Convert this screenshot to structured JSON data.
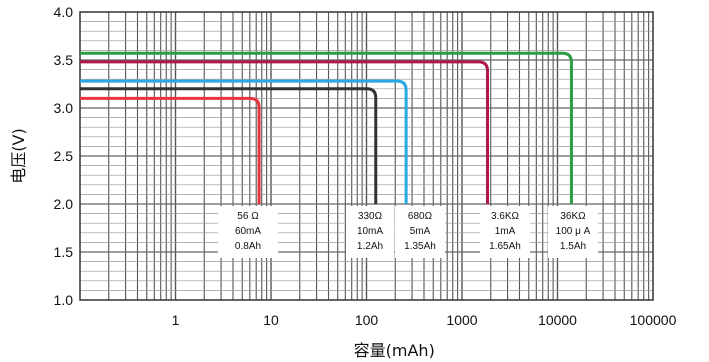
{
  "chart_data": {
    "type": "line",
    "title": "",
    "xlabel": "容量(mAh)",
    "ylabel": "电压(V)",
    "x_scale": "log",
    "xlim": [
      0.1,
      100000
    ],
    "ylim": [
      1.0,
      4.0
    ],
    "grid": true,
    "legend": "none",
    "x_ticks": [
      "1",
      "10",
      "100",
      "1000",
      "10000",
      "100000"
    ],
    "y_ticks": [
      "1.0",
      "1.5",
      "2.0",
      "2.5",
      "3.0",
      "3.5",
      "4.0"
    ],
    "series": [
      {
        "color": "#e8343c",
        "x": [
          0.1,
          7.5,
          7.5
        ],
        "y": [
          3.1,
          3.1,
          2.0
        ]
      },
      {
        "color": "#333333",
        "x": [
          0.1,
          125,
          125
        ],
        "y": [
          3.2,
          3.2,
          2.0
        ]
      },
      {
        "color": "#2aa8e0",
        "x": [
          0.1,
          260,
          260
        ],
        "y": [
          3.28,
          3.28,
          2.0
        ]
      },
      {
        "color": "#b0174a",
        "x": [
          0.1,
          1850,
          1850
        ],
        "y": [
          3.48,
          3.48,
          2.0
        ]
      },
      {
        "color": "#2c9c45",
        "x": [
          0.1,
          14000,
          14000
        ],
        "y": [
          3.57,
          3.57,
          2.0
        ]
      }
    ],
    "annotations": [
      {
        "lines": [
          "56 Ω",
          "60mA",
          "0.8Ah"
        ]
      },
      {
        "lines": [
          "330Ω",
          "10mA",
          "1.2Ah"
        ]
      },
      {
        "lines": [
          "680Ω",
          "5mA",
          "1.35Ah"
        ]
      },
      {
        "lines": [
          "3.6KΩ",
          "1mA",
          "1.65Ah"
        ]
      },
      {
        "lines": [
          "36KΩ",
          "100 μ A",
          "1.5Ah"
        ]
      }
    ]
  }
}
